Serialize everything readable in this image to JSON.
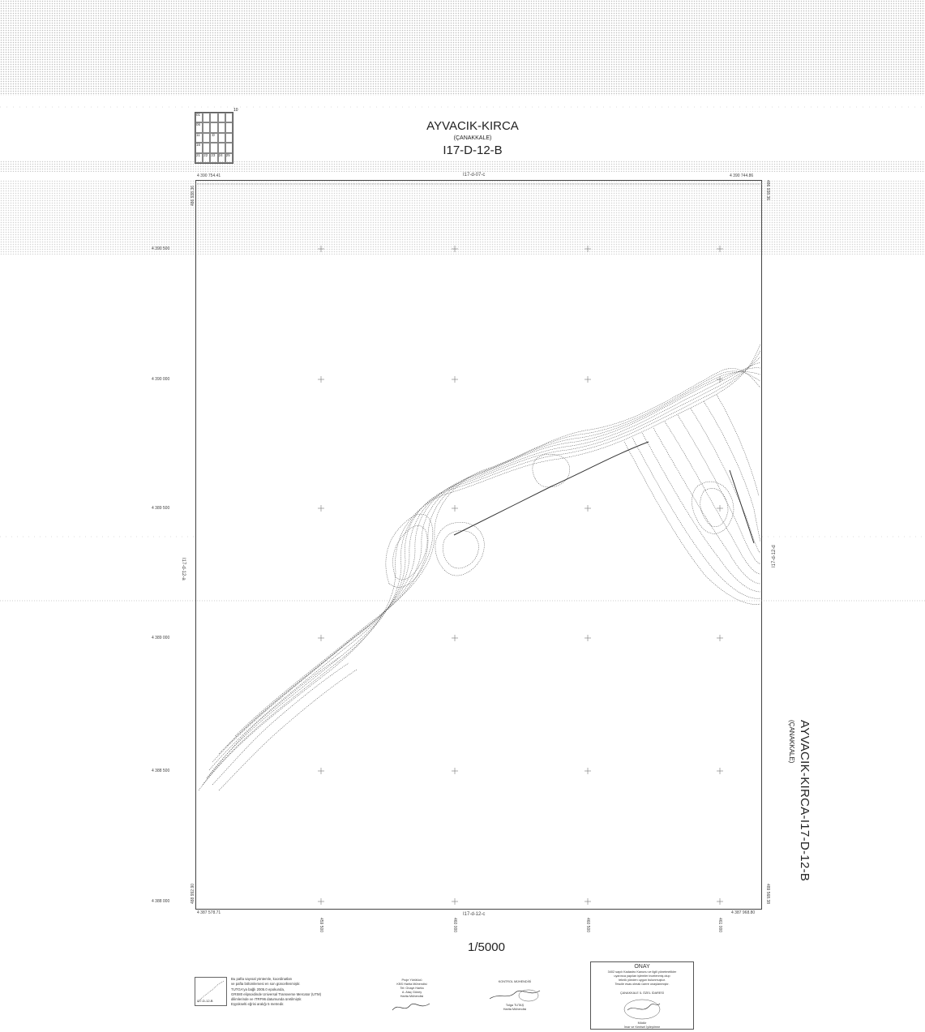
{
  "header": {
    "title": "AYVACIK-KIRCA",
    "province": "(ÇANAKKALE)",
    "sheet_code": "I17-D-12-B"
  },
  "index_grid": {
    "corner_label": "10",
    "cells": [
      "01",
      "",
      "",
      "",
      "",
      "06",
      "",
      "",
      "",
      "",
      "11",
      "",
      ".D",
      "",
      "",
      "16",
      "",
      "",
      "",
      "",
      "21",
      "22",
      "23",
      "24",
      "25"
    ]
  },
  "frame": {
    "top_left": "4 390 754.41",
    "top_right": "4 390 744.86",
    "bottom_left": "4 387 578.71",
    "bottom_right": "4 387 968.80",
    "left_top_vertical": "486 938.36",
    "right_top_vertical": "486 938.36",
    "left_bottom_vertical": "488 992.90",
    "right_bottom_vertical": "489 568.38"
  },
  "adjacent_sheets": {
    "north": "I17-d-07-c",
    "south": "I17-d-12-c",
    "west": "I17-d-12-a",
    "east": "I17-d-12-d"
  },
  "northings": [
    "4 390 500",
    "4 390 000",
    "4 389 500",
    "4 389 000",
    "4 388 500",
    "4 388 000"
  ],
  "eastings": [
    "459 500",
    "460 000",
    "460 500",
    "461 000"
  ],
  "scale": "1/5000",
  "side_title": "AYVACIK-KIRCA-I17-D-12-B",
  "side_subtitle": "(ÇANAKKALE)",
  "legend": {
    "inset_label": "I17-D-12-B",
    "notes": [
      "Bu pafta sayısal yöntemle, koordinatları",
      "ve pafta bölümlemesi en son güncellenmiştir.",
      "TUTGA'ya bağlı 2005.0 epokunda,",
      "GRS80 elipsoidinde Universal Transverse Mercator (UTM)",
      "dilimlerinde ve ITRF96 datumunda üretilmiştir.",
      "Eşyükselti eğrisi aralığı 5 metredir."
    ]
  },
  "signatures": [
    {
      "lines": [
        "Proje Yürütücü",
        "KBS Harita Mühendisi",
        "Tel: Onaylı Harita",
        "A. Ataç Güney",
        "Harita Mühendisi"
      ]
    },
    {
      "lines": [
        "KONTROL MÜHENDİSİ",
        "Tolga TUTAŞ",
        "Harita Mühendisi"
      ]
    }
  ],
  "onay": {
    "heading": "ONAY",
    "text": [
      "3402 sayılı Kadastro Kanunu ve ilgili yönetmelikler",
      "uyarınca yapılan işlemler incelenmiş olup",
      "teknik yönden uygun bulunmuştur.",
      "Tescile esas olmak üzere onaylanmıştır."
    ],
    "office": "ÇANAKKALE İL ÖZEL İDARESİ",
    "signer": [
      "Mehmet ...",
      "Müdür",
      "İmar ve Kentsel İyileştirme"
    ]
  }
}
